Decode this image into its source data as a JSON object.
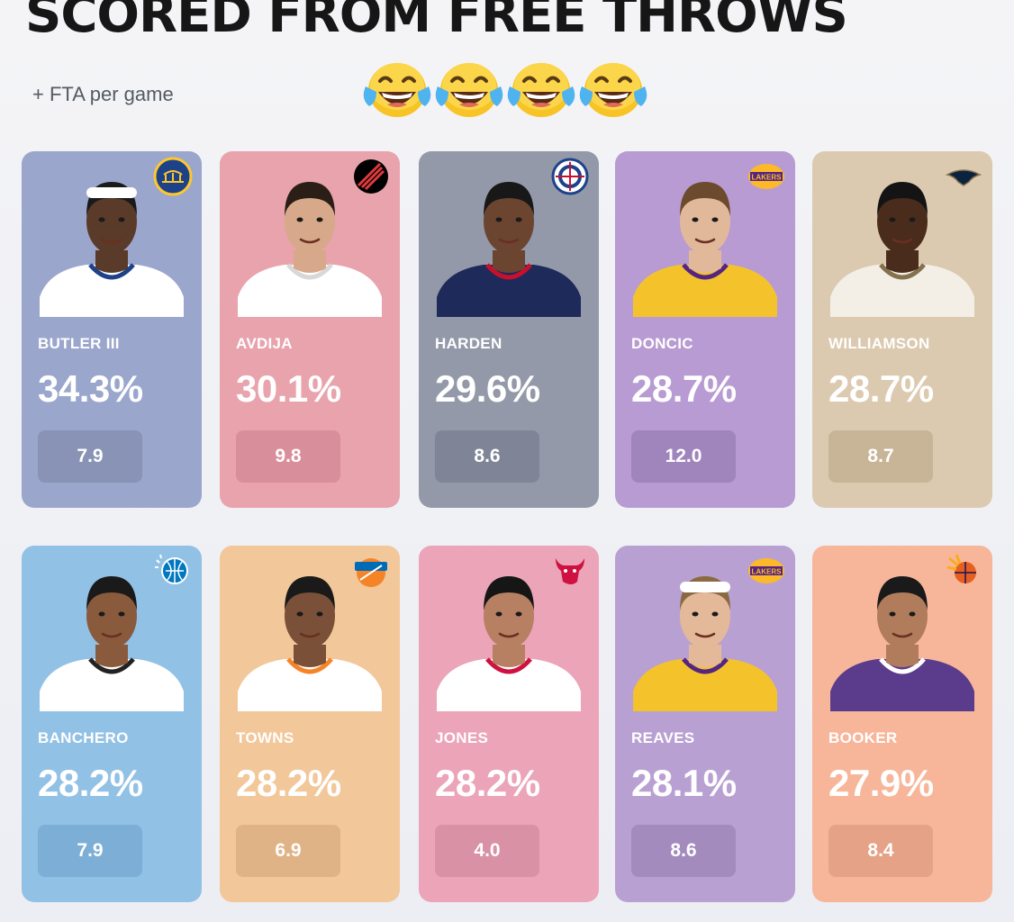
{
  "header": {
    "title": "SCORED FROM FREE THROWS",
    "subtitle": "+ FTA per game",
    "emoji_icon": "face-with-tears-of-joy",
    "emoji_count": 4
  },
  "players": [
    {
      "name": "BUTLER III",
      "pct": "34.3%",
      "fta": "7.9",
      "team_logo": "warriors-logo",
      "bg": "#9aa6cc",
      "pill": "#8893b5",
      "jersey": "#ffffff",
      "trim": "#1d428a",
      "skin": "#5a3a28",
      "hair": "#1a1a1a",
      "band": true
    },
    {
      "name": "AVDIJA",
      "pct": "30.1%",
      "fta": "9.8",
      "team_logo": "trail-blazers-logo",
      "bg": "#e8a3ad",
      "pill": "#d98f9b",
      "jersey": "#ffffff",
      "trim": "#d8d8d8",
      "skin": "#d7a889",
      "hair": "#2a1e17",
      "band": false
    },
    {
      "name": "HARDEN",
      "pct": "29.6%",
      "fta": "8.6",
      "team_logo": "clippers-logo",
      "bg": "#9399a8",
      "pill": "#7f8596",
      "jersey": "#1d2a5a",
      "trim": "#c8102e",
      "skin": "#6b4530",
      "hair": "#181818",
      "band": false
    },
    {
      "name": "DONCIC",
      "pct": "28.7%",
      "fta": "12.0",
      "team_logo": "lakers-logo",
      "bg": "#b79bd2",
      "pill": "#a084bc",
      "jersey": "#f4c32c",
      "trim": "#552583",
      "skin": "#e2b89a",
      "hair": "#6b4a2e",
      "band": false
    },
    {
      "name": "WILLIAMSON",
      "pct": "28.7%",
      "fta": "8.7",
      "team_logo": "pelicans-logo",
      "bg": "#dccab0",
      "pill": "#c8b598",
      "jersey": "#f3efe6",
      "trim": "#85714d",
      "skin": "#4a2c1c",
      "hair": "#141414",
      "band": false
    },
    {
      "name": "BANCHERO",
      "pct": "28.2%",
      "fta": "7.9",
      "team_logo": "magic-logo",
      "bg": "#92c1e6",
      "pill": "#7caed6",
      "jersey": "#ffffff",
      "trim": "#222222",
      "skin": "#8a5a3c",
      "hair": "#1a1a1a",
      "band": false
    },
    {
      "name": "TOWNS",
      "pct": "28.2%",
      "fta": "6.9",
      "team_logo": "knicks-logo",
      "bg": "#f2c79a",
      "pill": "#e0b386",
      "jersey": "#ffffff",
      "trim": "#f58426",
      "skin": "#7a5038",
      "hair": "#1a1a1a",
      "band": false
    },
    {
      "name": "JONES",
      "pct": "28.2%",
      "fta": "4.0",
      "team_logo": "bulls-logo",
      "bg": "#eba4b8",
      "pill": "#d991a6",
      "jersey": "#ffffff",
      "trim": "#ce1141",
      "skin": "#b88062",
      "hair": "#161616",
      "band": false
    },
    {
      "name": "REAVES",
      "pct": "28.1%",
      "fta": "8.6",
      "team_logo": "lakers-logo",
      "bg": "#b9a0d3",
      "pill": "#a38bbd",
      "jersey": "#f4c32c",
      "trim": "#552583",
      "skin": "#e4b999",
      "hair": "#8a6a40",
      "band": true
    },
    {
      "name": "BOOKER",
      "pct": "27.9%",
      "fta": "8.4",
      "team_logo": "suns-logo",
      "bg": "#f7b69a",
      "pill": "#e5a286",
      "jersey": "#5b3b8c",
      "trim": "#ffffff",
      "skin": "#b07c5c",
      "hair": "#1a1a1a",
      "band": false
    }
  ],
  "logo_text": {
    "lakers": "LAKERS"
  }
}
